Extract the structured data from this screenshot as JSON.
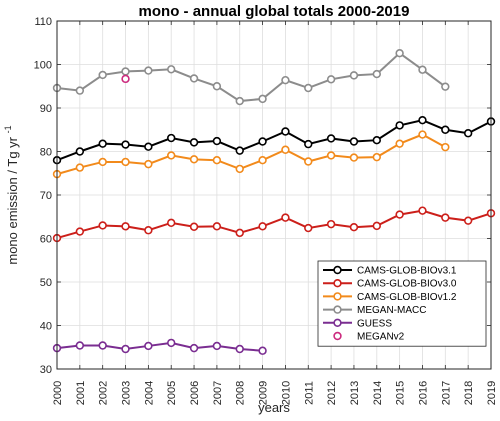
{
  "chart_data": {
    "type": "line",
    "title": "mono - annual global totals 2000-2019",
    "xlabel": "years",
    "ylabel": {
      "main": "mono emission / Tg yr",
      "superscript": "-1"
    },
    "xlim": [
      2000,
      2019
    ],
    "ylim": [
      30,
      110
    ],
    "x_ticks": [
      2000,
      2001,
      2002,
      2003,
      2004,
      2005,
      2006,
      2007,
      2008,
      2009,
      2010,
      2011,
      2012,
      2013,
      2014,
      2015,
      2016,
      2017,
      2018,
      2019
    ],
    "y_ticks": [
      30,
      40,
      50,
      60,
      70,
      80,
      90,
      100,
      110
    ],
    "grid": true,
    "legend_position": "lower-right",
    "series": [
      {
        "name": "CAMS-GLOB-BIOv3.1",
        "color": "#000000",
        "x": [
          2000,
          2001,
          2002,
          2003,
          2004,
          2005,
          2006,
          2007,
          2008,
          2009,
          2010,
          2011,
          2012,
          2013,
          2014,
          2015,
          2016,
          2017,
          2018,
          2019
        ],
        "y": [
          78.0,
          80.0,
          81.8,
          81.6,
          81.1,
          83.1,
          82.1,
          82.4,
          80.2,
          82.3,
          84.6,
          81.7,
          83.0,
          82.3,
          82.6,
          86.0,
          87.2,
          85.0,
          84.2,
          86.9
        ]
      },
      {
        "name": "CAMS-GLOB-BIOv3.0",
        "color": "#cc1f1a",
        "x": [
          2000,
          2001,
          2002,
          2003,
          2004,
          2005,
          2006,
          2007,
          2008,
          2009,
          2010,
          2011,
          2012,
          2013,
          2014,
          2015,
          2016,
          2017,
          2018,
          2019
        ],
        "y": [
          60.1,
          61.6,
          63.0,
          62.8,
          61.9,
          63.6,
          62.7,
          62.8,
          61.3,
          62.8,
          64.8,
          62.4,
          63.3,
          62.6,
          62.9,
          65.5,
          66.4,
          64.8,
          64.1,
          65.8
        ]
      },
      {
        "name": "CAMS-GLOB-BIOv1.2",
        "color": "#f28a1b",
        "x": [
          2000,
          2001,
          2002,
          2003,
          2004,
          2005,
          2006,
          2007,
          2008,
          2009,
          2010,
          2011,
          2012,
          2013,
          2014,
          2015,
          2016,
          2017
        ],
        "y": [
          74.8,
          76.3,
          77.6,
          77.6,
          77.1,
          79.1,
          78.2,
          78.0,
          76.0,
          78.0,
          80.4,
          77.7,
          79.1,
          78.6,
          78.7,
          81.8,
          83.9,
          81.0
        ]
      },
      {
        "name": "MEGAN-MACC",
        "color": "#8c8c8c",
        "x": [
          2000,
          2001,
          2002,
          2003,
          2004,
          2005,
          2006,
          2007,
          2008,
          2009,
          2010,
          2011,
          2012,
          2013,
          2014,
          2015,
          2016,
          2017
        ],
        "y": [
          94.6,
          94.0,
          97.6,
          98.4,
          98.6,
          98.9,
          96.8,
          95.0,
          91.6,
          92.1,
          96.4,
          94.6,
          96.6,
          97.5,
          97.8,
          102.6,
          98.8,
          94.9
        ]
      },
      {
        "name": "GUESS",
        "color": "#7a2d91",
        "x": [
          2000,
          2001,
          2002,
          2003,
          2004,
          2005,
          2006,
          2007,
          2008,
          2009
        ],
        "y": [
          34.8,
          35.4,
          35.4,
          34.6,
          35.3,
          36.0,
          34.8,
          35.3,
          34.6,
          34.2
        ]
      },
      {
        "name": "MEGANv2",
        "color": "#cc2a7e",
        "x": [
          2003
        ],
        "y": [
          96.7
        ]
      }
    ]
  }
}
